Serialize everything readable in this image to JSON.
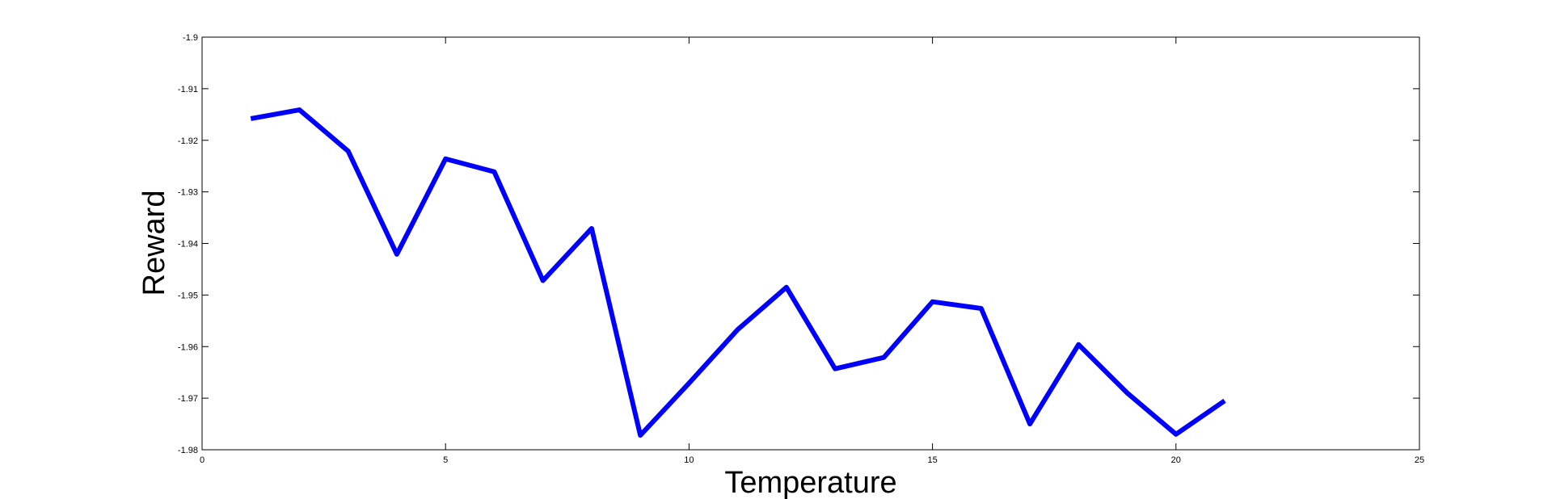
{
  "chart_data": {
    "type": "line",
    "title": "",
    "xlabel": "Temperature",
    "ylabel": "Reward",
    "xlim": [
      0,
      25
    ],
    "ylim": [
      -1.98,
      -1.9
    ],
    "xticks": [
      0,
      5,
      10,
      15,
      20,
      25
    ],
    "xtick_labels": [
      "0",
      "5",
      "10",
      "15",
      "20",
      "25"
    ],
    "yticks": [
      -1.98,
      -1.97,
      -1.96,
      -1.95,
      -1.94,
      -1.93,
      -1.92,
      -1.91,
      -1.9
    ],
    "ytick_labels": [
      "-1.98",
      "-1.97",
      "-1.96",
      "-1.95",
      "-1.94",
      "-1.93",
      "-1.92",
      "-1.91",
      "-1.9"
    ],
    "grid": false,
    "legend": "none",
    "line_color": "#0000ff",
    "series": [
      {
        "x": [
          1,
          2,
          3,
          4,
          5,
          6,
          7,
          8,
          9,
          10,
          11,
          12,
          13,
          14,
          15,
          16,
          17,
          18,
          19,
          20,
          21
        ],
        "values": [
          -1.9158,
          -1.9141,
          -1.9221,
          -1.9421,
          -1.9236,
          -1.9261,
          -1.9472,
          -1.9371,
          -1.9772,
          -1.9671,
          -1.9567,
          -1.9485,
          -1.9643,
          -1.9621,
          -1.9513,
          -1.9526,
          -1.975,
          -1.9596,
          -1.969,
          -1.977,
          -1.9705
        ]
      }
    ]
  }
}
